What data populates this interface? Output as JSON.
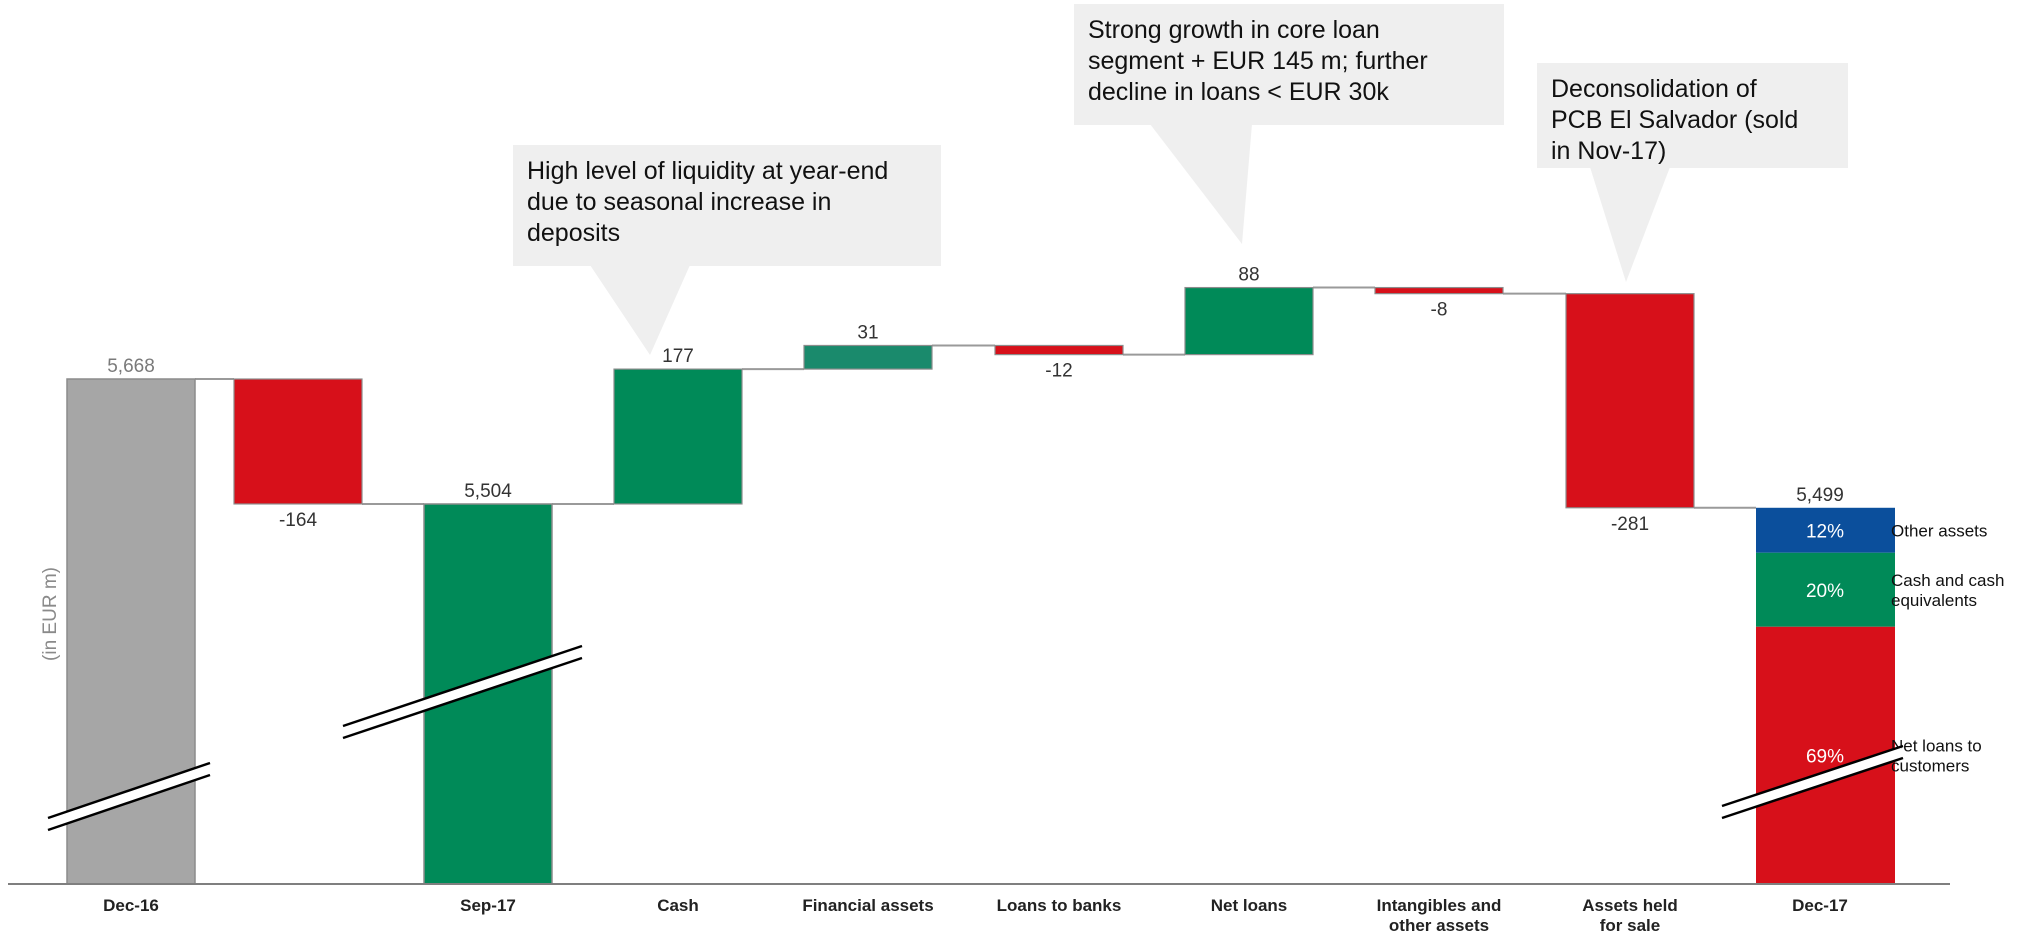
{
  "chart_data": {
    "type": "waterfall",
    "ylabel": "(in EUR m)",
    "steps": [
      {
        "category": "Dec-16",
        "kind": "total",
        "value": 5668,
        "label": "5,668",
        "color": "#a6a6a6",
        "broken_axis": true
      },
      {
        "category": "",
        "kind": "delta",
        "value": -164,
        "label": "-164",
        "color": "#d7101a"
      },
      {
        "category": "Sep-17",
        "kind": "total",
        "value": 5504,
        "label": "5,504",
        "color": "#008a58",
        "broken_axis": true
      },
      {
        "category": "Cash",
        "kind": "delta",
        "value": 177,
        "label": "177",
        "color": "#008a58"
      },
      {
        "category": "Financial assets",
        "kind": "delta",
        "value": 31,
        "label": "31",
        "color": "#1a8a6c"
      },
      {
        "category": "Loans to banks",
        "kind": "delta",
        "value": -12,
        "label": "-12",
        "color": "#d7101a"
      },
      {
        "category": "Net loans",
        "kind": "delta",
        "value": 88,
        "label": "88",
        "color": "#008a58"
      },
      {
        "category": "Intangibles and other assets",
        "kind": "delta",
        "value": -8,
        "label": "-8",
        "color": "#d7101a"
      },
      {
        "category": "Assets held for sale",
        "kind": "delta",
        "value": -281,
        "label": "-281",
        "color": "#d7101a"
      },
      {
        "category": "Dec-17",
        "kind": "total",
        "value": 5499,
        "label": "5,499",
        "broken_axis": true,
        "composition": [
          {
            "name": "Net loans to customers",
            "pct": "69%",
            "share": 0.69,
            "color": "#d7101a"
          },
          {
            "name": "Cash and cash equivalents",
            "pct": "20%",
            "share": 0.2,
            "color": "#008a58"
          },
          {
            "name": "Other assets",
            "pct": "12%",
            "share": 0.12,
            "color": "#0b4f9c"
          }
        ]
      }
    ],
    "annotations": [
      {
        "text_lines": [
          "High level of liquidity at year-end",
          "due to seasonal increase in",
          "deposits"
        ],
        "points_to": "Cash"
      },
      {
        "text_lines": [
          "Strong growth in core loan",
          "segment + EUR 145 m; further",
          "decline in loans < EUR 30k"
        ],
        "points_to": "Net loans"
      },
      {
        "text_lines": [
          "Deconsolidation of",
          "PCB El Salvador (sold",
          "in Nov-17)"
        ],
        "points_to": "Assets held for sale"
      }
    ]
  }
}
